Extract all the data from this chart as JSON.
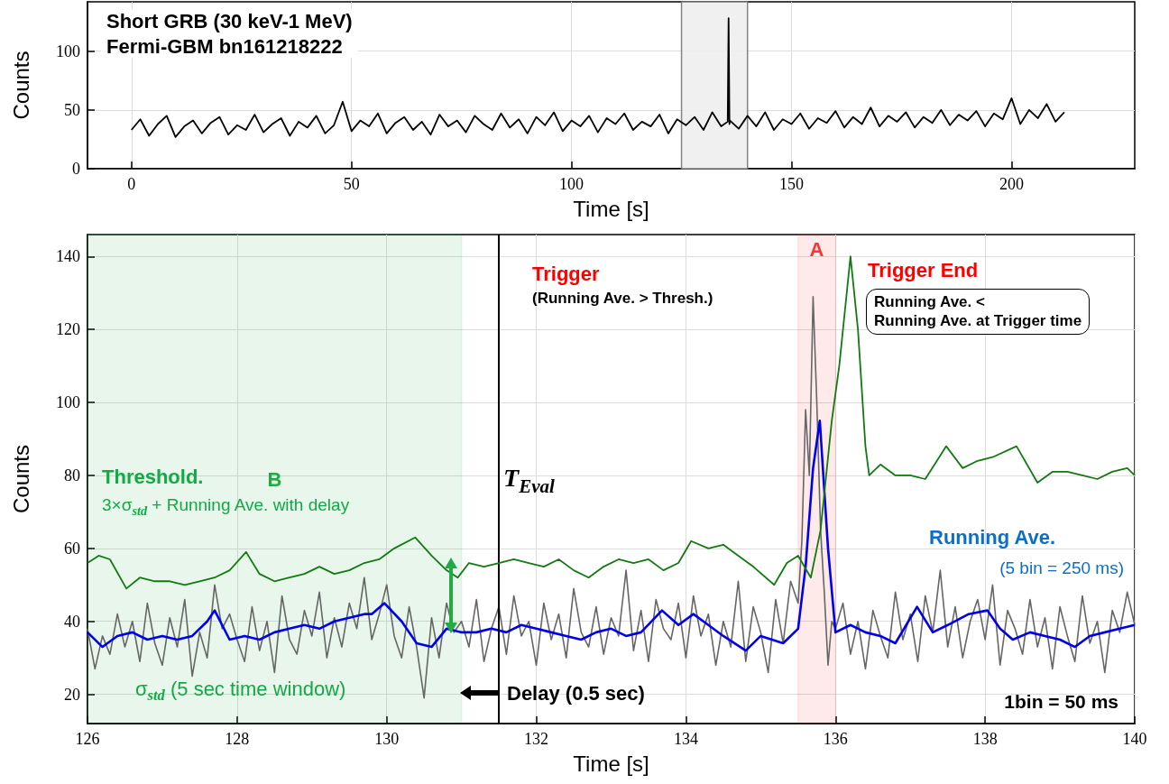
{
  "chart_data": [
    {
      "type": "line",
      "title": "Short GRB (30 keV-1 MeV)",
      "subtitle": "Fermi-GBM bn161218222",
      "xlabel": "Time [s]",
      "ylabel": "Counts",
      "xlim": [
        -10,
        228
      ],
      "xticks": [
        0,
        50,
        100,
        150,
        200
      ],
      "ylim": [
        0,
        142
      ],
      "yticks": [
        0,
        50,
        100
      ],
      "grid": true,
      "bands": [
        {
          "axis": "x",
          "from": 125,
          "to": 140,
          "color": "#eeeeee"
        }
      ],
      "series": [
        {
          "color": "#000000",
          "x": [
            0,
            2,
            4,
            6,
            8,
            10,
            12,
            14,
            16,
            18,
            20,
            22,
            24,
            26,
            28,
            30,
            32,
            34,
            36,
            38,
            40,
            42,
            44,
            46,
            48,
            50,
            52,
            54,
            56,
            58,
            60,
            62,
            64,
            66,
            68,
            70,
            72,
            74,
            76,
            78,
            80,
            82,
            84,
            86,
            88,
            90,
            92,
            94,
            96,
            98,
            100,
            102,
            104,
            106,
            108,
            110,
            112,
            114,
            116,
            118,
            120,
            122,
            124,
            126,
            128,
            130,
            132,
            134,
            135.5,
            135.7,
            135.9,
            136,
            138,
            140,
            142,
            144,
            146,
            148,
            150,
            152,
            154,
            156,
            158,
            160,
            162,
            164,
            166,
            168,
            170,
            172,
            174,
            176,
            178,
            180,
            182,
            184,
            186,
            188,
            190,
            192,
            194,
            196,
            198,
            200,
            202,
            204,
            206,
            208,
            210,
            212
          ],
          "values": [
            33,
            42,
            28,
            38,
            45,
            27,
            36,
            41,
            30,
            39,
            44,
            29,
            37,
            33,
            46,
            31,
            38,
            43,
            28,
            40,
            35,
            45,
            30,
            37,
            57,
            32,
            41,
            36,
            47,
            30,
            39,
            44,
            33,
            40,
            29,
            46,
            36,
            41,
            31,
            45,
            38,
            33,
            47,
            35,
            42,
            30,
            44,
            37,
            48,
            32,
            41,
            36,
            45,
            31,
            43,
            38,
            47,
            33,
            40,
            36,
            46,
            30,
            42,
            37,
            44,
            33,
            48,
            36,
            40,
            128,
            38,
            41,
            34,
            45,
            36,
            48,
            33,
            42,
            38,
            47,
            34,
            43,
            39,
            49,
            35,
            44,
            38,
            52,
            36,
            45,
            40,
            48,
            35,
            44,
            39,
            50,
            37,
            46,
            41,
            49,
            36,
            47,
            42,
            60,
            38,
            50,
            43,
            55,
            40,
            48
          ]
        }
      ]
    },
    {
      "type": "line",
      "xlabel": "Time [s]",
      "ylabel": "Counts",
      "xlim": [
        126,
        140
      ],
      "xticks": [
        126,
        128,
        130,
        132,
        134,
        136,
        138,
        140
      ],
      "ylim": [
        12,
        146
      ],
      "yticks": [
        20,
        40,
        60,
        80,
        100,
        120,
        140
      ],
      "grid": true,
      "annotations": [
        "Trigger",
        "(Running Ave. > Thresh.)",
        "Trigger End",
        "Running Ave. <\nRunning Ave. at Trigger time",
        "Threshold.",
        "3×σ$_{std}$ + Running Ave. with delay",
        "σ$_{std}$ (5 sec time window)",
        "Delay (0.5 sec)",
        "Running Ave.",
        "(5 bin = 250 ms)",
        "1bin = 50 ms"
      ],
      "ref_lines": [
        {
          "axis": "x",
          "value": 131.5,
          "label": "T$_{Eval}$",
          "color": "#000000"
        }
      ],
      "bands": [
        {
          "axis": "x",
          "from": 135.5,
          "to": 136,
          "label": "A",
          "color": "#ff3333"
        },
        {
          "axis": "x",
          "from": 126,
          "to": 131,
          "label": "B",
          "color": "#22aa44"
        }
      ],
      "series": [
        {
          "color": "#666666",
          "x": [
            126.0,
            126.1,
            126.2,
            126.3,
            126.4,
            126.5,
            126.6,
            126.7,
            126.8,
            126.9,
            127.0,
            127.1,
            127.2,
            127.3,
            127.4,
            127.5,
            127.6,
            127.7,
            127.8,
            127.9,
            128.0,
            128.1,
            128.2,
            128.3,
            128.4,
            128.5,
            128.6,
            128.7,
            128.8,
            128.9,
            129.0,
            129.1,
            129.2,
            129.3,
            129.4,
            129.5,
            129.6,
            129.7,
            129.8,
            129.9,
            130.0,
            130.1,
            130.2,
            130.3,
            130.4,
            130.5,
            130.6,
            130.7,
            130.8,
            130.9,
            131.0,
            131.1,
            131.2,
            131.3,
            131.4,
            131.5,
            131.6,
            131.7,
            131.8,
            131.9,
            132.0,
            132.1,
            132.2,
            132.3,
            132.4,
            132.5,
            132.6,
            132.7,
            132.8,
            132.9,
            133.0,
            133.1,
            133.2,
            133.3,
            133.4,
            133.5,
            133.6,
            133.7,
            133.8,
            133.9,
            134.0,
            134.1,
            134.2,
            134.3,
            134.4,
            134.5,
            134.6,
            134.7,
            134.8,
            134.9,
            135.0,
            135.1,
            135.2,
            135.3,
            135.4,
            135.5,
            135.55,
            135.6,
            135.65,
            135.7,
            135.75,
            135.8,
            135.85,
            135.9,
            135.95,
            136.0,
            136.1,
            136.2,
            136.3,
            136.4,
            136.5,
            136.6,
            136.7,
            136.8,
            136.9,
            137.0,
            137.1,
            137.2,
            137.3,
            137.4,
            137.5,
            137.6,
            137.7,
            137.8,
            137.9,
            138.0,
            138.1,
            138.2,
            138.3,
            138.4,
            138.5,
            138.6,
            138.7,
            138.8,
            138.9,
            139.0,
            139.1,
            139.2,
            139.3,
            139.4,
            139.5,
            139.6,
            139.7,
            139.8,
            139.9,
            140.0
          ],
          "values": [
            38,
            27,
            36,
            31,
            42,
            33,
            40,
            29,
            45,
            34,
            28,
            41,
            33,
            46,
            25,
            37,
            30,
            50,
            38,
            42,
            35,
            29,
            44,
            32,
            40,
            26,
            47,
            35,
            31,
            43,
            36,
            48,
            30,
            41,
            33,
            45,
            38,
            52,
            35,
            42,
            50,
            36,
            30,
            44,
            33,
            19,
            41,
            30,
            45,
            37,
            40,
            33,
            46,
            29,
            38,
            44,
            31,
            47,
            36,
            40,
            28,
            45,
            35,
            42,
            30,
            49,
            37,
            33,
            44,
            31,
            41,
            36,
            54,
            32,
            43,
            29,
            46,
            38,
            35,
            45,
            30,
            47,
            36,
            42,
            28,
            40,
            33,
            51,
            29,
            44,
            37,
            26,
            46,
            34,
            51,
            45,
            62,
            98,
            80,
            129,
            100,
            65,
            48,
            28,
            40,
            38,
            45,
            31,
            40,
            27,
            43,
            36,
            30,
            48,
            35,
            42,
            29,
            47,
            37,
            54,
            33,
            44,
            30,
            40,
            46,
            35,
            50,
            28,
            43,
            38,
            31,
            46,
            33,
            41,
            27,
            44,
            36,
            29,
            47,
            34,
            40,
            26,
            43,
            37,
            48,
            39
          ]
        },
        {
          "color": "#0000ee",
          "x": [
            126.0,
            126.2,
            126.4,
            126.6,
            126.8,
            127.0,
            127.2,
            127.4,
            127.6,
            127.7,
            127.9,
            128.1,
            128.3,
            128.5,
            128.7,
            128.9,
            129.1,
            129.3,
            129.5,
            129.7,
            129.8,
            129.97,
            130.2,
            130.4,
            130.6,
            130.8,
            131.0,
            131.2,
            131.4,
            131.6,
            131.8,
            132.0,
            132.2,
            132.4,
            132.6,
            132.8,
            133.0,
            133.2,
            133.4,
            133.68,
            133.9,
            134.1,
            134.3,
            134.5,
            134.8,
            135.0,
            135.3,
            135.5,
            135.6,
            135.7,
            135.79,
            135.9,
            136.0,
            136.2,
            136.4,
            136.6,
            136.8,
            137.09,
            137.3,
            137.5,
            137.78,
            138.03,
            138.2,
            138.37,
            138.6,
            138.8,
            139.0,
            139.2,
            139.4,
            139.6,
            139.8,
            140.0
          ],
          "values": [
            37,
            33,
            36,
            37,
            35,
            36,
            35,
            36,
            40,
            43,
            35,
            36,
            35,
            37,
            38,
            39,
            38,
            40,
            41,
            42,
            42,
            45,
            40,
            34,
            33,
            38,
            37,
            37,
            38,
            37,
            39,
            38,
            37,
            36,
            35,
            37,
            38,
            36,
            37,
            43,
            39,
            42,
            39,
            36,
            32,
            36,
            34,
            38,
            55,
            82,
            95,
            60,
            37,
            39,
            37,
            36,
            34,
            44,
            37,
            39,
            42,
            43,
            38,
            35,
            37,
            36,
            35,
            33,
            36,
            37,
            38,
            39
          ]
        },
        {
          "color": "#117a11",
          "x": [
            126.0,
            126.15,
            126.3,
            126.52,
            126.7,
            126.9,
            127.1,
            127.3,
            127.5,
            127.7,
            127.9,
            128.12,
            128.3,
            128.5,
            128.7,
            128.9,
            129.1,
            129.3,
            129.5,
            129.7,
            129.9,
            130.1,
            130.38,
            130.6,
            130.8,
            130.95,
            131.1,
            131.3,
            131.5,
            131.7,
            131.9,
            132.1,
            132.3,
            132.5,
            132.7,
            132.9,
            133.1,
            133.3,
            133.5,
            133.7,
            133.9,
            134.07,
            134.3,
            134.5,
            134.7,
            134.9,
            135.18,
            135.35,
            135.5,
            135.67,
            135.8,
            135.95,
            136.05,
            136.2,
            136.3,
            136.4,
            136.45,
            136.6,
            136.8,
            137.0,
            137.2,
            137.48,
            137.7,
            137.9,
            138.1,
            138.42,
            138.7,
            138.9,
            139.1,
            139.3,
            139.5,
            139.7,
            139.9,
            140.0
          ],
          "values": [
            56,
            58,
            57,
            49,
            52,
            51,
            51,
            50,
            51,
            52,
            54,
            59,
            53,
            51,
            52,
            53,
            55,
            53,
            54,
            56,
            57,
            60,
            63,
            58,
            54,
            52,
            56,
            55,
            56,
            57,
            56,
            55,
            57,
            54,
            52,
            55,
            57,
            56,
            57,
            54,
            56,
            62,
            60,
            61,
            58,
            55,
            50,
            56,
            58,
            52,
            65,
            95,
            110,
            140,
            120,
            88,
            80,
            83,
            80,
            80,
            79,
            88,
            82,
            84,
            85,
            88,
            78,
            81,
            81,
            80,
            79,
            81,
            82,
            80
          ]
        }
      ]
    }
  ]
}
